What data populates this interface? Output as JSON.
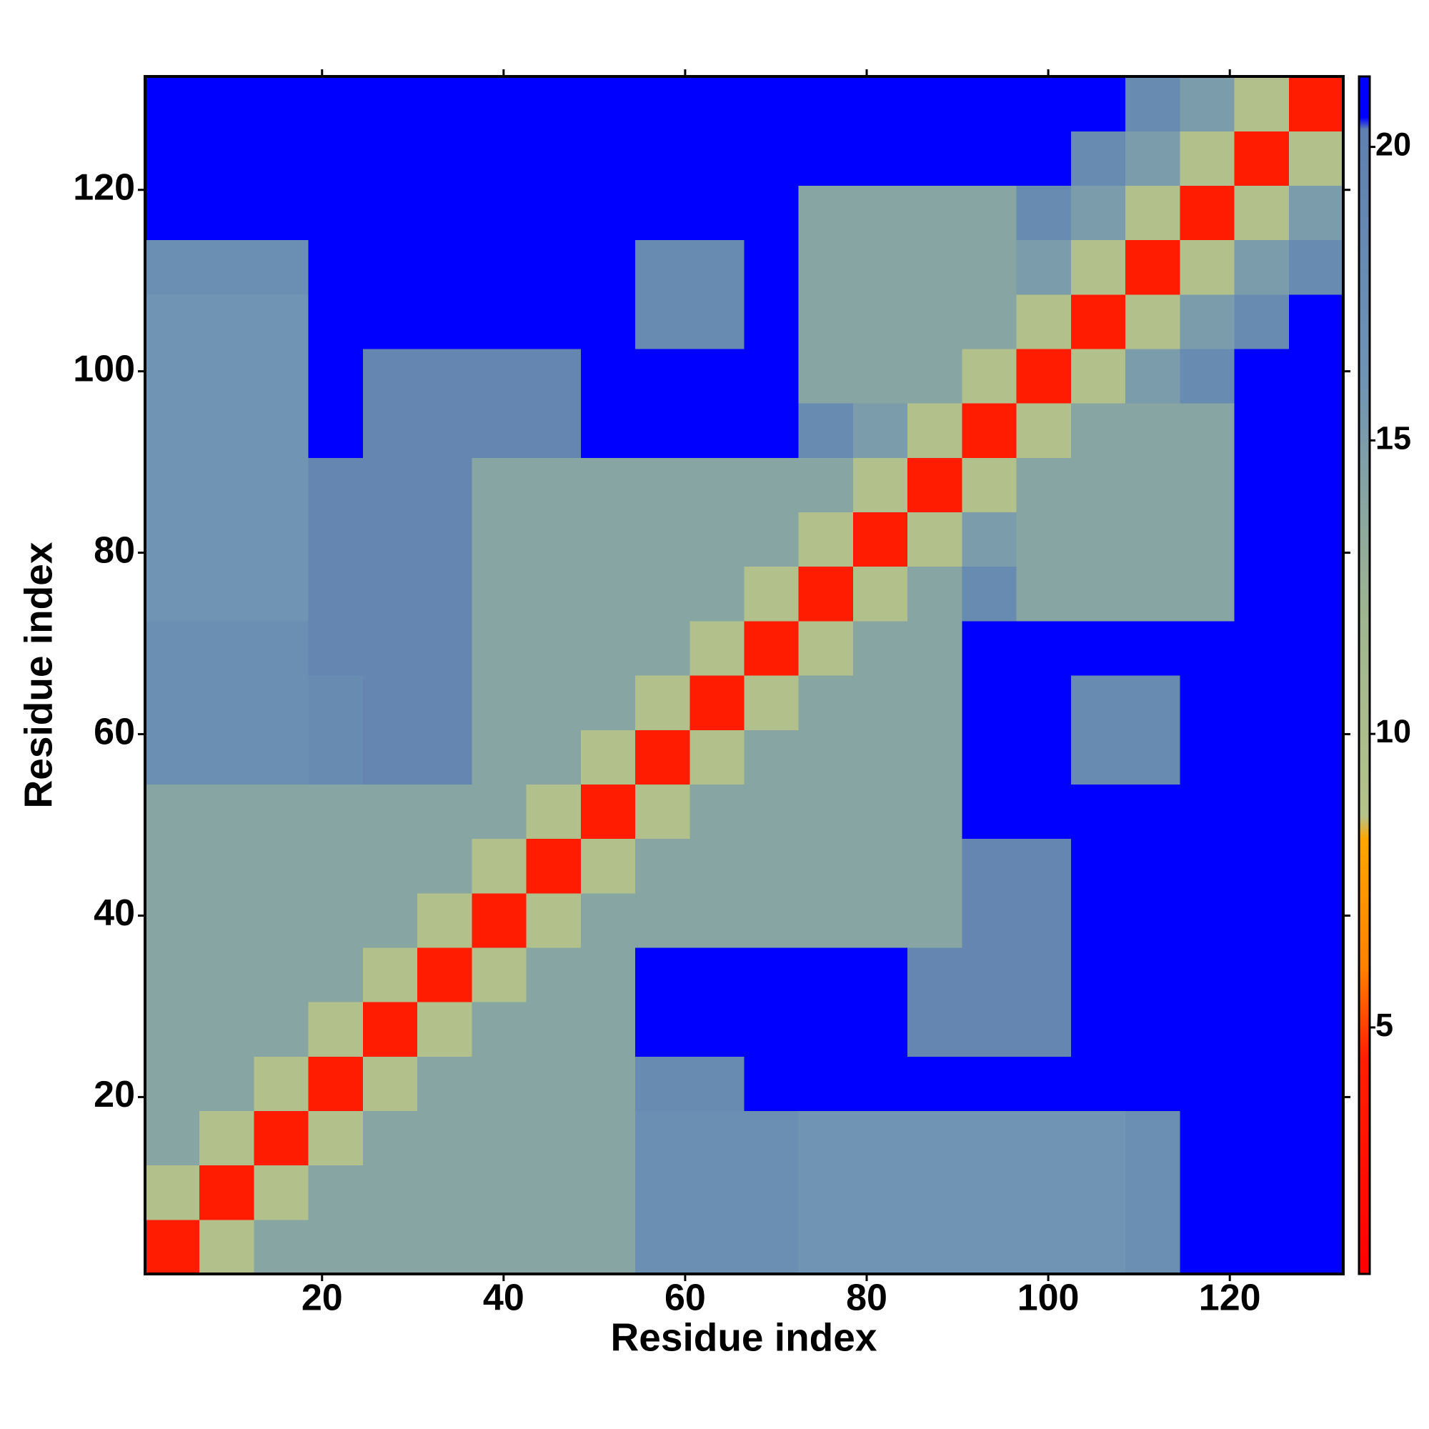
{
  "chart_data": {
    "type": "heatmap",
    "xlabel": "Residue index",
    "ylabel": "Residue index",
    "xlim": [
      0.5,
      132.5
    ],
    "ylim": [
      0.5,
      132.5
    ],
    "xticks": [
      20,
      40,
      60,
      80,
      100,
      120
    ],
    "yticks": [
      20,
      40,
      60,
      80,
      100,
      120
    ],
    "xbins": [
      0.5,
      6.5,
      12.5,
      18.5,
      24.5,
      30.5,
      36.5,
      42.5,
      48.5,
      54.5,
      60.5,
      66.5,
      72.5,
      78.5,
      84.5,
      90.5,
      96.5,
      102.5,
      108.5,
      114.5,
      120.5,
      126.5,
      132.5
    ],
    "ybins": [
      0.5,
      6.5,
      12.5,
      18.5,
      24.5,
      30.5,
      36.5,
      42.5,
      48.5,
      54.5,
      60.5,
      66.5,
      72.5,
      78.5,
      84.5,
      90.5,
      96.5,
      102.5,
      108.5,
      114.5,
      120.5,
      126.5,
      132.5
    ],
    "z": [
      [
        4,
        9,
        14,
        14,
        14,
        14,
        14,
        14,
        14,
        17,
        17,
        17,
        16,
        16,
        16,
        16,
        16,
        16,
        17,
        21,
        21,
        21
      ],
      [
        9,
        4,
        9,
        14,
        14,
        14,
        14,
        14,
        14,
        17,
        17,
        17,
        16,
        16,
        16,
        16,
        16,
        16,
        17,
        21,
        21,
        21
      ],
      [
        14,
        9,
        4,
        9,
        14,
        14,
        14,
        14,
        14,
        17,
        17,
        17,
        16,
        16,
        16,
        16,
        16,
        16,
        17,
        21,
        21,
        21
      ],
      [
        14,
        14,
        9,
        4,
        9,
        14,
        14,
        14,
        14,
        18,
        18,
        21,
        21,
        21,
        21,
        21,
        21,
        21,
        21,
        21,
        21,
        21
      ],
      [
        14,
        14,
        14,
        9,
        4,
        9,
        14,
        14,
        14,
        21,
        21,
        21,
        21,
        21,
        19,
        19,
        19,
        21,
        21,
        21,
        21,
        21
      ],
      [
        14,
        14,
        14,
        14,
        9,
        4,
        9,
        14,
        14,
        21,
        21,
        21,
        21,
        21,
        19,
        19,
        19,
        21,
        21,
        21,
        21,
        21
      ],
      [
        14,
        14,
        14,
        14,
        14,
        9,
        4,
        9,
        14,
        14,
        14,
        14,
        14,
        14,
        14,
        19,
        19,
        21,
        21,
        21,
        21,
        21
      ],
      [
        14,
        14,
        14,
        14,
        14,
        14,
        9,
        4,
        9,
        14,
        14,
        14,
        14,
        14,
        14,
        19,
        19,
        21,
        21,
        21,
        21,
        21
      ],
      [
        14,
        14,
        14,
        14,
        14,
        14,
        14,
        9,
        4,
        9,
        14,
        14,
        14,
        14,
        14,
        21,
        21,
        21,
        21,
        21,
        21,
        21
      ],
      [
        17,
        17,
        17,
        18,
        19,
        19,
        14,
        14,
        9,
        4,
        9,
        14,
        14,
        14,
        14,
        21,
        21,
        18,
        18,
        21,
        21,
        21
      ],
      [
        17,
        17,
        17,
        18,
        19,
        19,
        14,
        14,
        14,
        9,
        4,
        9,
        14,
        14,
        14,
        21,
        21,
        18,
        18,
        21,
        21,
        21
      ],
      [
        17,
        17,
        17,
        19,
        19,
        19,
        14,
        14,
        14,
        14,
        9,
        4,
        9,
        14,
        14,
        21,
        21,
        21,
        21,
        21,
        21,
        21
      ],
      [
        16,
        16,
        16,
        19,
        19,
        19,
        14,
        14,
        14,
        14,
        14,
        9,
        4,
        9,
        14,
        18,
        14,
        14,
        14,
        14,
        21,
        21
      ],
      [
        16,
        16,
        16,
        19,
        19,
        19,
        14,
        14,
        14,
        14,
        14,
        14,
        9,
        4,
        9,
        15,
        14,
        14,
        14,
        14,
        21,
        21
      ],
      [
        16,
        16,
        16,
        19,
        19,
        19,
        14,
        14,
        14,
        14,
        14,
        14,
        14,
        9,
        4,
        9,
        14,
        14,
        14,
        14,
        21,
        21
      ],
      [
        16,
        16,
        16,
        21,
        19,
        19,
        19,
        19,
        21,
        21,
        21,
        21,
        18,
        15,
        9,
        4,
        9,
        14,
        14,
        14,
        21,
        21
      ],
      [
        16,
        16,
        16,
        21,
        19,
        19,
        19,
        19,
        21,
        21,
        21,
        21,
        14,
        14,
        14,
        9,
        4,
        9,
        15,
        18,
        21,
        21
      ],
      [
        16,
        16,
        16,
        21,
        21,
        21,
        21,
        21,
        21,
        18,
        18,
        21,
        14,
        14,
        14,
        14,
        9,
        4,
        9,
        15,
        18,
        21
      ],
      [
        17,
        17,
        17,
        21,
        21,
        21,
        21,
        21,
        21,
        18,
        18,
        21,
        14,
        14,
        14,
        14,
        15,
        9,
        4,
        9,
        15,
        18
      ],
      [
        21,
        21,
        21,
        21,
        21,
        21,
        21,
        21,
        21,
        21,
        21,
        21,
        14,
        14,
        14,
        14,
        18,
        15,
        9,
        4,
        9,
        15
      ],
      [
        21,
        21,
        21,
        21,
        21,
        21,
        21,
        21,
        21,
        21,
        21,
        21,
        21,
        21,
        21,
        21,
        21,
        18,
        15,
        9,
        4,
        9
      ],
      [
        21,
        21,
        21,
        21,
        21,
        21,
        21,
        21,
        21,
        21,
        21,
        21,
        21,
        21,
        21,
        21,
        21,
        21,
        18,
        15,
        9,
        4
      ]
    ],
    "zlim": [
      0.8,
      21.2
    ],
    "zticks": [
      5,
      10,
      15,
      20
    ],
    "colorscale": [
      [
        0.8,
        "#ff0000"
      ],
      [
        4.5,
        "#ff2000"
      ],
      [
        6,
        "#ff8000"
      ],
      [
        8.2,
        "#ffa500"
      ],
      [
        8.6,
        "#b5c38a"
      ],
      [
        12,
        "#9fb590"
      ],
      [
        16,
        "#6f94b4"
      ],
      [
        20.3,
        "#5f80b0"
      ],
      [
        20.5,
        "#0000ff"
      ],
      [
        21.2,
        "#0000ff"
      ]
    ]
  }
}
